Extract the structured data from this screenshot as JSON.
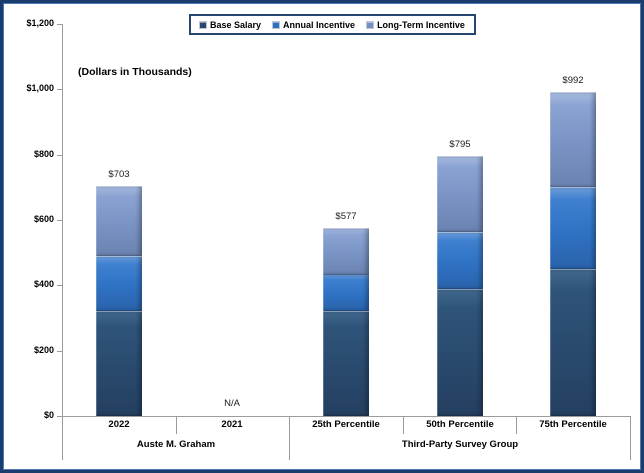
{
  "chart_data": {
    "type": "bar",
    "stacked": true,
    "subtitle": "(Dollars in Thousands)",
    "categories": [
      "2022",
      "2021",
      "25th Percentile",
      "50th Percentile",
      "75th Percentile"
    ],
    "category_groups": [
      {
        "label": "Auste M. Graham",
        "start": 0,
        "end": 1
      },
      {
        "label": "Third-Party Survey Group",
        "start": 2,
        "end": 4
      }
    ],
    "series": [
      {
        "name": "Base Salary",
        "color": "#27486C",
        "values": [
          320,
          null,
          320,
          388,
          449
        ]
      },
      {
        "name": "Annual Incentive",
        "color": "#2E6FC0",
        "values": [
          169,
          null,
          112,
          175,
          252
        ]
      },
      {
        "name": "Long-Term Incentive",
        "color": "#7490C2",
        "values": [
          214,
          null,
          145,
          232,
          291
        ]
      }
    ],
    "totals": [
      "$703",
      "N/A",
      "$577",
      "$795",
      "$992"
    ],
    "y_ticks": [
      "$0",
      "$200",
      "$400",
      "$600",
      "$800",
      "$1,000",
      "$1,200"
    ],
    "y_tick_step": 200,
    "ylim": [
      0,
      1200
    ],
    "legend_position": "top",
    "grid": false
  },
  "colors": {
    "frame_border": "#1C3C6E",
    "legend_border": "#24466F",
    "axis_line": "#9C9C9C"
  }
}
